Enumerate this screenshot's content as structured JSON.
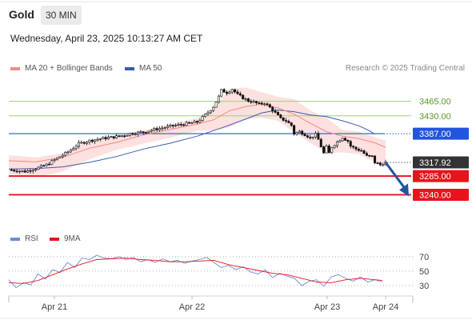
{
  "header": {
    "instrument": "Gold",
    "timeframe": "30 MIN"
  },
  "datetime": "Wednesday, April 23, 2025 10:13:27 AM CET",
  "legend": {
    "ma20_label": "MA 20 + Bollinger Bands",
    "ma50_label": "MA 50",
    "credit": "Research © 2025 Trading Central",
    "rsi_label": "RSI",
    "rsi_ma_label": "9MA"
  },
  "colors": {
    "ma20": "#f28b82",
    "ma50": "#3b5bab",
    "bollinger_fill": "#fde0e0",
    "resistance": "#9fd27a",
    "pivot": "#2255dd",
    "support": "#e8141b",
    "last_price": "#333333",
    "arrow": "#1f57a0",
    "candle": "#111111",
    "rsi": "#6c8bd8",
    "rsi_ma": "#e8141b"
  },
  "chart_data": [
    {
      "type": "candlestick",
      "instrument": "Gold",
      "timeframe": "30 MIN",
      "x_ticks": [
        "Apr 21",
        "Apr 22",
        "Apr 23",
        "Apr 24"
      ],
      "ylim": [
        3160,
        3520
      ],
      "levels": [
        {
          "value": 3465.0,
          "label": "3465.00",
          "kind": "resistance"
        },
        {
          "value": 3430.0,
          "label": "3430.00",
          "kind": "resistance"
        },
        {
          "value": 3387.0,
          "label": "3387.00",
          "kind": "pivot"
        },
        {
          "value": 3317.92,
          "label": "3317.92",
          "kind": "last"
        },
        {
          "value": 3285.0,
          "label": "3285.00",
          "kind": "support"
        },
        {
          "value": 3240.0,
          "label": "3240.00",
          "kind": "support"
        }
      ],
      "last_price": 3317.92,
      "forecast_target": 3240.0,
      "close_path": [
        [
          0,
          3300
        ],
        [
          6,
          3296
        ],
        [
          10,
          3303
        ],
        [
          14,
          3312
        ],
        [
          18,
          3328
        ],
        [
          22,
          3343
        ],
        [
          26,
          3363
        ],
        [
          30,
          3370
        ],
        [
          34,
          3375
        ],
        [
          38,
          3378
        ],
        [
          42,
          3382
        ],
        [
          46,
          3388
        ],
        [
          50,
          3391
        ],
        [
          54,
          3397
        ],
        [
          58,
          3402
        ],
        [
          62,
          3407
        ],
        [
          66,
          3411
        ],
        [
          70,
          3415
        ],
        [
          72,
          3426
        ],
        [
          74,
          3438
        ],
        [
          76,
          3452
        ],
        [
          78,
          3476
        ],
        [
          79,
          3491
        ],
        [
          81,
          3486
        ],
        [
          83,
          3494
        ],
        [
          85,
          3481
        ],
        [
          87,
          3473
        ],
        [
          89,
          3466
        ],
        [
          91,
          3463
        ],
        [
          93,
          3458
        ],
        [
          95,
          3461
        ],
        [
          97,
          3450
        ],
        [
          99,
          3437
        ],
        [
          101,
          3423
        ],
        [
          103,
          3418
        ],
        [
          105,
          3407
        ],
        [
          106,
          3387
        ],
        [
          108,
          3392
        ],
        [
          110,
          3385
        ],
        [
          112,
          3377
        ],
        [
          114,
          3385
        ],
        [
          115,
          3373
        ],
        [
          117,
          3340
        ],
        [
          118,
          3355
        ],
        [
          119,
          3340
        ],
        [
          120,
          3355
        ],
        [
          122,
          3367
        ],
        [
          124,
          3378
        ],
        [
          126,
          3369
        ],
        [
          127,
          3357
        ],
        [
          129,
          3350
        ],
        [
          131,
          3346
        ],
        [
          133,
          3333
        ],
        [
          135,
          3332
        ],
        [
          136,
          3318
        ],
        [
          138,
          3312
        ],
        [
          140,
          3318
        ]
      ],
      "ma20_path": [
        [
          0,
          3322
        ],
        [
          10,
          3319
        ],
        [
          20,
          3330
        ],
        [
          30,
          3352
        ],
        [
          40,
          3366
        ],
        [
          50,
          3384
        ],
        [
          60,
          3397
        ],
        [
          70,
          3410
        ],
        [
          76,
          3420
        ],
        [
          82,
          3442
        ],
        [
          88,
          3452
        ],
        [
          94,
          3458
        ],
        [
          100,
          3449
        ],
        [
          106,
          3434
        ],
        [
          112,
          3412
        ],
        [
          118,
          3392
        ],
        [
          124,
          3381
        ],
        [
          130,
          3375
        ],
        [
          136,
          3365
        ],
        [
          140,
          3354
        ]
      ],
      "ma50_path": [
        [
          0,
          3302
        ],
        [
          10,
          3303
        ],
        [
          20,
          3307
        ],
        [
          30,
          3318
        ],
        [
          40,
          3332
        ],
        [
          50,
          3350
        ],
        [
          60,
          3364
        ],
        [
          70,
          3381
        ],
        [
          80,
          3403
        ],
        [
          88,
          3422
        ],
        [
          94,
          3437
        ],
        [
          100,
          3444
        ],
        [
          106,
          3440
        ],
        [
          112,
          3432
        ],
        [
          118,
          3428
        ],
        [
          124,
          3418
        ],
        [
          130,
          3406
        ],
        [
          134,
          3394
        ],
        [
          136,
          3386
        ]
      ],
      "bollinger_upper": [
        [
          0,
          3335
        ],
        [
          10,
          3330
        ],
        [
          20,
          3340
        ],
        [
          30,
          3370
        ],
        [
          40,
          3385
        ],
        [
          50,
          3395
        ],
        [
          60,
          3409
        ],
        [
          70,
          3425
        ],
        [
          76,
          3445
        ],
        [
          82,
          3495
        ],
        [
          88,
          3498
        ],
        [
          94,
          3487
        ],
        [
          100,
          3476
        ],
        [
          106,
          3470
        ],
        [
          112,
          3443
        ],
        [
          118,
          3425
        ],
        [
          124,
          3396
        ],
        [
          130,
          3392
        ],
        [
          136,
          3378
        ],
        [
          140,
          3370
        ]
      ],
      "bollinger_lower": [
        [
          0,
          3290
        ],
        [
          10,
          3282
        ],
        [
          20,
          3296
        ],
        [
          30,
          3325
        ],
        [
          40,
          3348
        ],
        [
          50,
          3363
        ],
        [
          60,
          3377
        ],
        [
          70,
          3394
        ],
        [
          76,
          3395
        ],
        [
          82,
          3402
        ],
        [
          88,
          3423
        ],
        [
          94,
          3425
        ],
        [
          100,
          3418
        ],
        [
          106,
          3390
        ],
        [
          112,
          3365
        ],
        [
          118,
          3340
        ],
        [
          124,
          3342
        ],
        [
          130,
          3338
        ],
        [
          136,
          3318
        ],
        [
          140,
          3310
        ]
      ]
    },
    {
      "type": "line",
      "title": "RSI",
      "ylim": [
        20,
        82
      ],
      "y_ticks": [
        70,
        50,
        30
      ],
      "series": [
        {
          "name": "RSI",
          "points": [
            [
              0,
              38
            ],
            [
              3,
              27
            ],
            [
              6,
              34
            ],
            [
              9,
              31
            ],
            [
              12,
              46
            ],
            [
              15,
              39
            ],
            [
              18,
              52
            ],
            [
              21,
              48
            ],
            [
              24,
              62
            ],
            [
              27,
              55
            ],
            [
              30,
              68
            ],
            [
              33,
              66
            ],
            [
              36,
              72
            ],
            [
              39,
              68
            ],
            [
              42,
              67
            ],
            [
              45,
              70
            ],
            [
              48,
              66
            ],
            [
              51,
              69
            ],
            [
              54,
              63
            ],
            [
              57,
              66
            ],
            [
              60,
              62
            ],
            [
              63,
              67
            ],
            [
              66,
              63
            ],
            [
              69,
              65
            ],
            [
              72,
              61
            ],
            [
              75,
              64
            ],
            [
              78,
              66
            ],
            [
              81,
              69
            ],
            [
              84,
              62
            ],
            [
              87,
              55
            ],
            [
              90,
              58
            ],
            [
              93,
              52
            ],
            [
              96,
              56
            ],
            [
              99,
              49
            ],
            [
              102,
              46
            ],
            [
              105,
              52
            ],
            [
              108,
              41
            ],
            [
              111,
              47
            ],
            [
              114,
              43
            ],
            [
              117,
              40
            ],
            [
              120,
              30
            ],
            [
              123,
              36
            ],
            [
              126,
              38
            ],
            [
              129,
              29
            ],
            [
              132,
              42
            ],
            [
              135,
              45
            ],
            [
              138,
              40
            ],
            [
              141,
              36
            ],
            [
              144,
              42
            ],
            [
              147,
              35
            ],
            [
              150,
              38
            ],
            [
              153,
              35
            ]
          ]
        },
        {
          "name": "9MA",
          "points": [
            [
              0,
              34
            ],
            [
              6,
              33
            ],
            [
              12,
              37
            ],
            [
              18,
              45
            ],
            [
              24,
              53
            ],
            [
              30,
              60
            ],
            [
              36,
              66
            ],
            [
              42,
              67
            ],
            [
              48,
              68
            ],
            [
              54,
              66
            ],
            [
              60,
              65
            ],
            [
              66,
              63
            ],
            [
              72,
              63
            ],
            [
              78,
              64
            ],
            [
              84,
              65
            ],
            [
              90,
              59
            ],
            [
              96,
              55
            ],
            [
              102,
              51
            ],
            [
              108,
              47
            ],
            [
              114,
              45
            ],
            [
              120,
              40
            ],
            [
              126,
              35
            ],
            [
              132,
              34
            ],
            [
              138,
              38
            ],
            [
              144,
              40
            ],
            [
              150,
              38
            ],
            [
              153,
              37
            ]
          ]
        }
      ]
    }
  ]
}
